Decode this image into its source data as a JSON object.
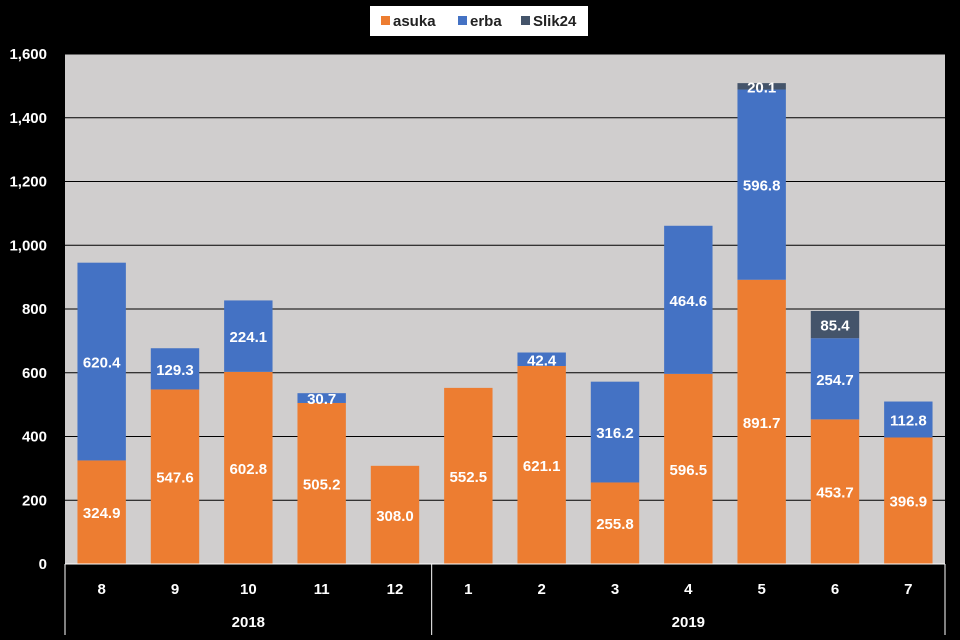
{
  "chart_data": {
    "type": "bar",
    "stacked": true,
    "categories": [
      "8",
      "9",
      "10",
      "11",
      "12",
      "1",
      "2",
      "3",
      "4",
      "5",
      "6",
      "7"
    ],
    "groups": [
      {
        "label": "2018",
        "count": 5
      },
      {
        "label": "2019",
        "count": 7
      }
    ],
    "series": [
      {
        "name": "asuka",
        "color": "#ED7D31",
        "values": [
          324.9,
          547.6,
          602.8,
          505.2,
          308.0,
          552.5,
          621.1,
          255.8,
          596.5,
          891.7,
          453.7,
          396.9
        ],
        "labels": [
          "324.9",
          "547.6",
          "602.8",
          "505.2",
          "308.0",
          "552.5",
          "621.1",
          "255.8",
          "596.5",
          "891.7",
          "453.7",
          "396.9"
        ]
      },
      {
        "name": "erba",
        "color": "#4472C4",
        "values": [
          620.4,
          129.3,
          224.1,
          30.7,
          0,
          0,
          42.4,
          316.2,
          464.6,
          596.8,
          254.7,
          112.8
        ],
        "labels": [
          "620.4",
          "129.3",
          "224.1",
          "30.7",
          "",
          "",
          "42.4",
          "316.2",
          "464.6",
          "596.8",
          "254.7",
          "112.8"
        ]
      },
      {
        "name": "Slik24",
        "color": "#44546A",
        "values": [
          0,
          0,
          0,
          0,
          0,
          0,
          0,
          0,
          0,
          20.1,
          85.4,
          0
        ],
        "labels": [
          "",
          "",
          "",
          "",
          "",
          "",
          "",
          "",
          "",
          "20.1",
          "85.4",
          ""
        ]
      }
    ],
    "ylim": [
      0,
      1600
    ],
    "yticks": [
      "0",
      "200",
      "400",
      "600",
      "800",
      "1,000",
      "1,200",
      "1,400",
      "1,600"
    ],
    "ytick_values": [
      0,
      200,
      400,
      600,
      800,
      1000,
      1200,
      1400,
      1600
    ],
    "grid": true,
    "legend_position": "top-center",
    "plot_background": "#D0CECE",
    "title": "",
    "xlabel": "",
    "ylabel": ""
  }
}
